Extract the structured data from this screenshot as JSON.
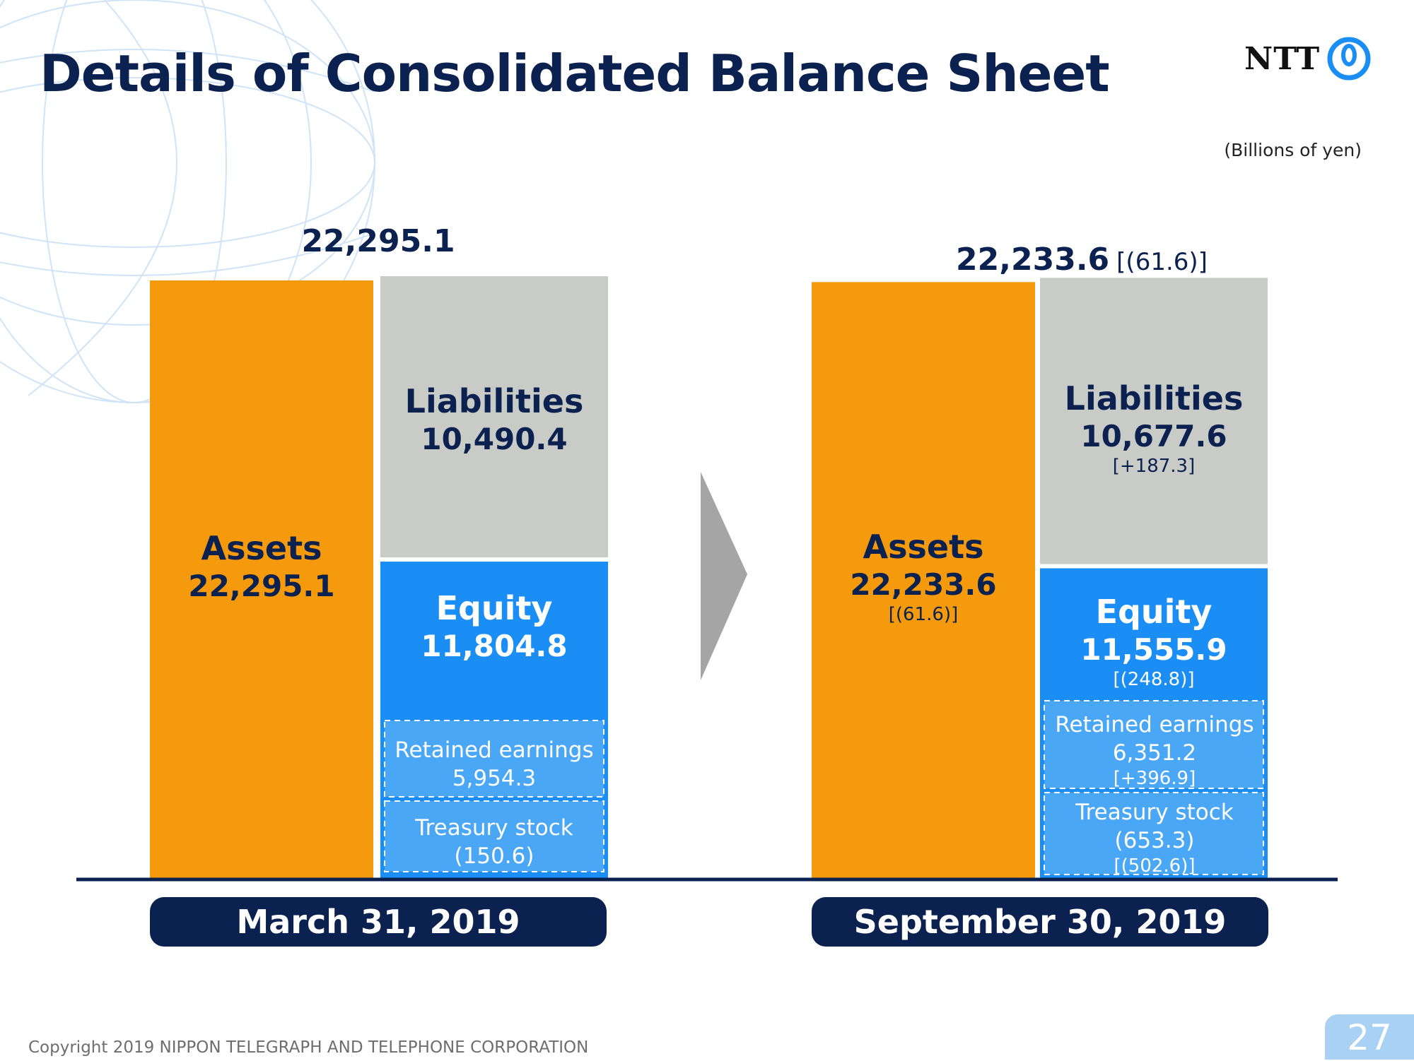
{
  "page": {
    "title": "Details of Consolidated Balance Sheet",
    "logo_text": "NTT",
    "unit_note": "(Billions of yen)",
    "footer": "Copyright 2019 NIPPON TELEGRAPH AND TELEPHONE CORPORATION",
    "page_number": "27"
  },
  "colors": {
    "assets": "#f59a0c",
    "liabilities": "#c9cbc7",
    "equity": "#1a8ef5",
    "sub_box": "#4aa7f6",
    "navy": "#0b2150"
  },
  "icons": [
    "ntt-logo-icon",
    "chevron-right-icon",
    "globe-graphic-icon"
  ],
  "chart_data": {
    "type": "bar",
    "subtype": "stacked-balance-sheet",
    "unit": "Billions of yen",
    "periods": [
      {
        "date": "March 31, 2019",
        "total": 22295.1,
        "total_label": "22,295.1",
        "total_change_label": "",
        "assets": {
          "label": "Assets",
          "value": 22295.1,
          "value_label": "22,295.1",
          "change_label": ""
        },
        "liabilities": {
          "label": "Liabilities",
          "value": 10490.4,
          "value_label": "10,490.4",
          "change_label": ""
        },
        "equity": {
          "label": "Equity",
          "value": 11804.8,
          "value_label": "11,804.8",
          "change_label": ""
        },
        "retained_earnings": {
          "label": "Retained earnings",
          "value": 5954.3,
          "value_label": "5,954.3",
          "change_label": ""
        },
        "treasury_stock": {
          "label": "Treasury stock",
          "value": -150.6,
          "value_label": "(150.6)",
          "change_label": ""
        }
      },
      {
        "date": "September 30, 2019",
        "total": 22233.6,
        "total_label": "22,233.6",
        "total_change_label": "[(61.6)]",
        "assets": {
          "label": "Assets",
          "value": 22233.6,
          "value_label": "22,233.6",
          "change_label": "[(61.6)]"
        },
        "liabilities": {
          "label": "Liabilities",
          "value": 10677.6,
          "value_label": "10,677.6",
          "change_label": "[+187.3]"
        },
        "equity": {
          "label": "Equity",
          "value": 11555.9,
          "value_label": "11,555.9",
          "change_label": "[(248.8)]"
        },
        "retained_earnings": {
          "label": "Retained earnings",
          "value": 6351.2,
          "value_label": "6,351.2",
          "change_label": "[+396.9]"
        },
        "treasury_stock": {
          "label": "Treasury stock",
          "value": -653.3,
          "value_label": "(653.3)",
          "change_label": "[(502.6)]"
        }
      }
    ]
  }
}
